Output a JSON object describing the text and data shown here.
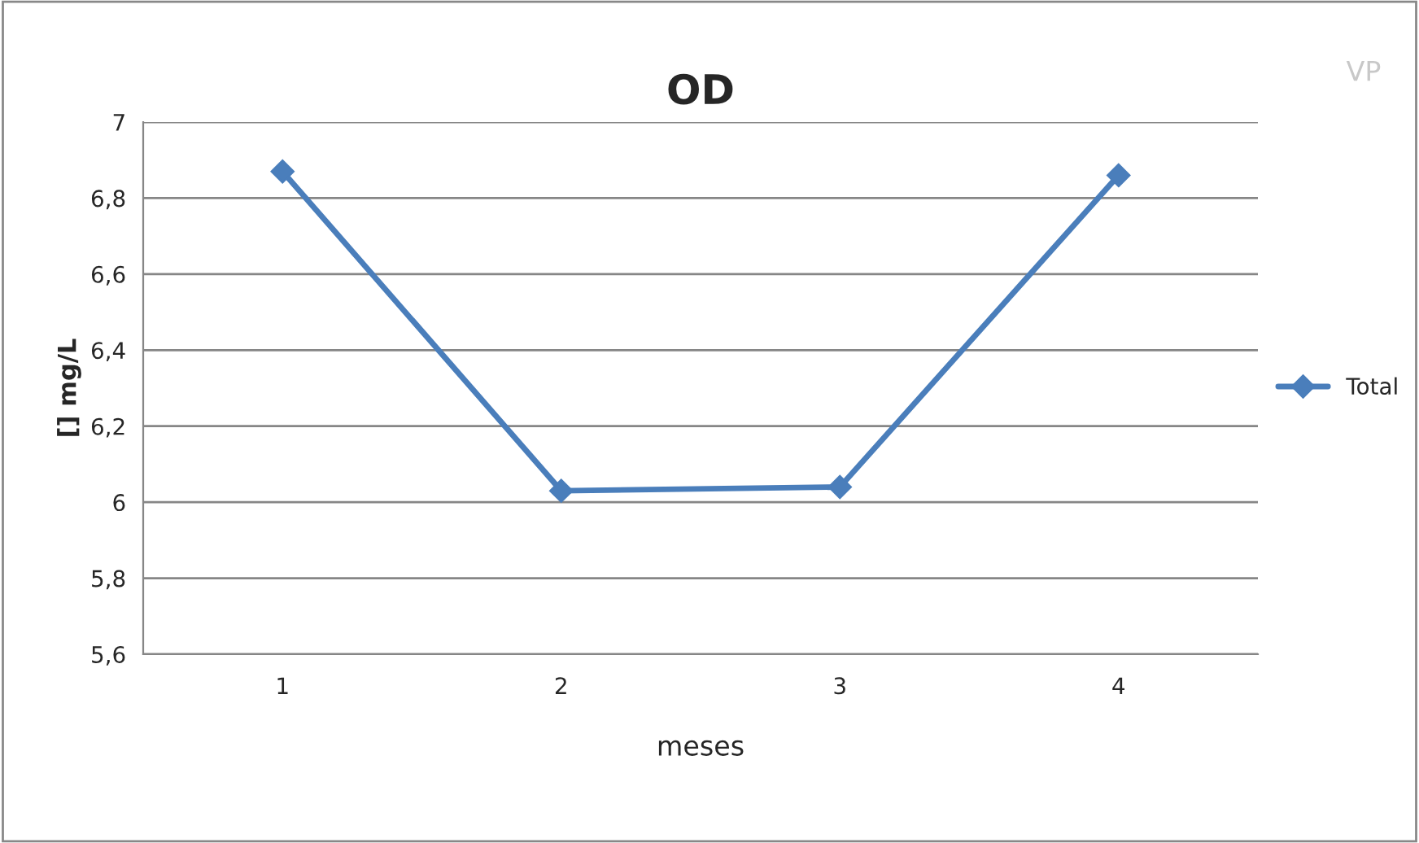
{
  "chart_data": {
    "type": "line",
    "title": "OD",
    "xlabel": "meses",
    "ylabel": "[] mg/L",
    "categories": [
      "1",
      "2",
      "3",
      "4"
    ],
    "series": [
      {
        "name": "Total",
        "color": "#4a7ebb",
        "values": [
          6.87,
          6.03,
          6.04,
          6.86
        ]
      }
    ],
    "ylim": [
      5.6,
      7.0
    ],
    "yticks": [
      {
        "value": 5.6,
        "label": "5,6"
      },
      {
        "value": 5.8,
        "label": "5,8"
      },
      {
        "value": 6.0,
        "label": "6"
      },
      {
        "value": 6.2,
        "label": "6,2"
      },
      {
        "value": 6.4,
        "label": "6,4"
      },
      {
        "value": 6.6,
        "label": "6,6"
      },
      {
        "value": 6.8,
        "label": "6,8"
      },
      {
        "value": 7.0,
        "label": "7"
      }
    ],
    "grid": "y",
    "legend": "right",
    "marker": "diamond",
    "line_style": "solid",
    "annotations": [
      "VP"
    ]
  }
}
